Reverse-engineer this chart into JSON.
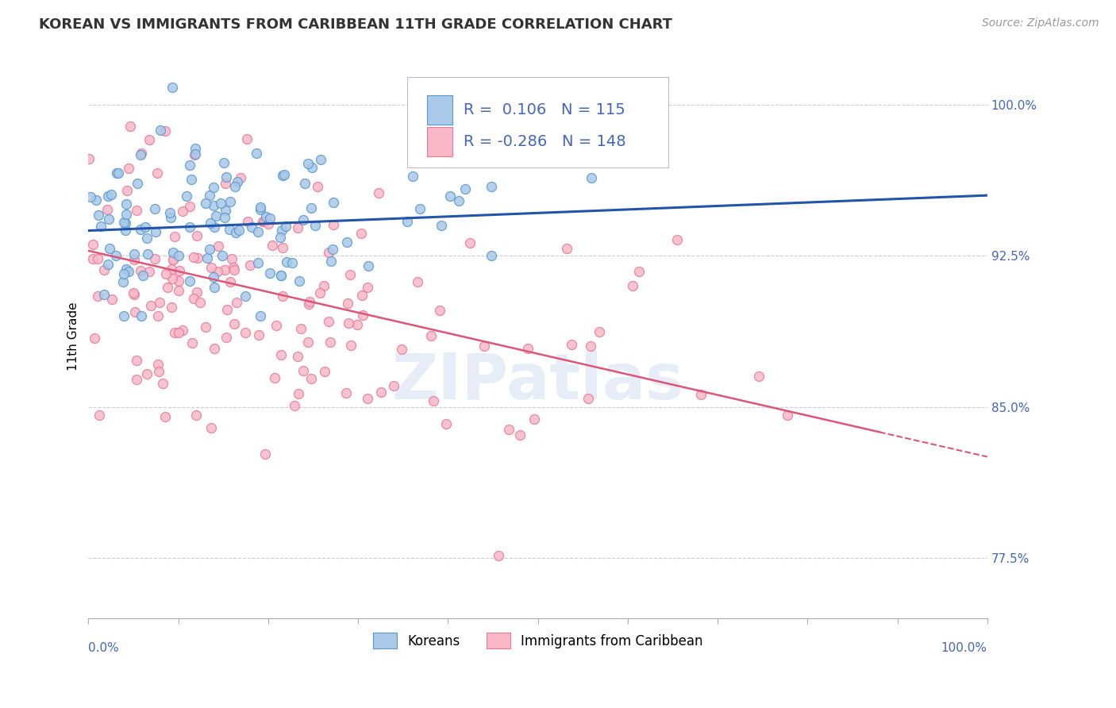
{
  "title": "KOREAN VS IMMIGRANTS FROM CARIBBEAN 11TH GRADE CORRELATION CHART",
  "source": "Source: ZipAtlas.com",
  "ylabel": "11th Grade",
  "xmin": 0.0,
  "xmax": 1.0,
  "ymin": 0.745,
  "ymax": 1.025,
  "yticks": [
    0.775,
    0.85,
    0.925,
    1.0
  ],
  "ytick_labels": [
    "77.5%",
    "85.0%",
    "92.5%",
    "100.0%"
  ],
  "xtick_labels": [
    "0.0%",
    "100.0%"
  ],
  "xticks": [
    0.0,
    1.0
  ],
  "blue_color": "#aac8e8",
  "pink_color": "#f8b8c8",
  "blue_edge_color": "#5599cc",
  "pink_edge_color": "#e87898",
  "blue_line_color": "#2255aa",
  "pink_line_color": "#dd5577",
  "label_color": "#4466bb",
  "background_color": "#ffffff",
  "grid_color": "#ccccdd",
  "legend_blue": "Koreans",
  "legend_pink": "Immigrants from Caribbean",
  "r_blue": 0.106,
  "n_blue": 115,
  "r_pink": -0.286,
  "n_pink": 148,
  "watermark": "ZIPatlas",
  "blue_line_y_start": 0.9375,
  "blue_line_y_end": 0.955,
  "pink_line_y_start": 0.9275,
  "pink_line_y_end": 0.8375,
  "title_fontsize": 13,
  "axis_label_fontsize": 11,
  "tick_fontsize": 11,
  "legend_fontsize": 14,
  "source_fontsize": 10
}
